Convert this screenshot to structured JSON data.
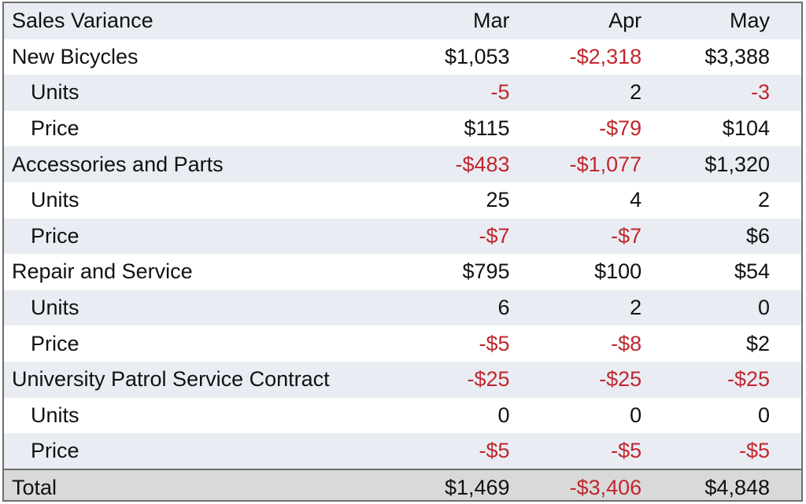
{
  "chart_data": {
    "type": "table",
    "title": "Sales Variance",
    "columns": [
      "Mar",
      "Apr",
      "May"
    ],
    "rows": [
      {
        "label": "New Bicycles",
        "indent": false,
        "values": [
          "$1,053",
          "-$2,318",
          "$3,388"
        ]
      },
      {
        "label": "Units",
        "indent": true,
        "values": [
          "-5",
          "2",
          "-3"
        ]
      },
      {
        "label": "Price",
        "indent": true,
        "values": [
          "$115",
          "-$79",
          "$104"
        ]
      },
      {
        "label": "Accessories and Parts",
        "indent": false,
        "values": [
          "-$483",
          "-$1,077",
          "$1,320"
        ]
      },
      {
        "label": "Units",
        "indent": true,
        "values": [
          "25",
          "4",
          "2"
        ]
      },
      {
        "label": "Price",
        "indent": true,
        "values": [
          "-$7",
          "-$7",
          "$6"
        ]
      },
      {
        "label": "Repair and Service",
        "indent": false,
        "values": [
          "$795",
          "$100",
          "$54"
        ]
      },
      {
        "label": "Units",
        "indent": true,
        "values": [
          "6",
          "2",
          "0"
        ]
      },
      {
        "label": "Price",
        "indent": true,
        "values": [
          "-$5",
          "-$8",
          "$2"
        ]
      },
      {
        "label": "University Patrol Service Contract",
        "indent": false,
        "values": [
          "-$25",
          "-$25",
          "-$25"
        ]
      },
      {
        "label": "Units",
        "indent": true,
        "values": [
          "0",
          "0",
          "0"
        ]
      },
      {
        "label": "Price",
        "indent": true,
        "values": [
          "-$5",
          "-$5",
          "-$5"
        ]
      }
    ],
    "total": {
      "label": "Total",
      "values": [
        "$1,469",
        "-$3,406",
        "$4,848"
      ]
    },
    "colors": {
      "negative": "#c0272d",
      "shade": "#e9edf3",
      "total_fill": "#d9d9d9",
      "border": "#6e6e6e"
    }
  }
}
